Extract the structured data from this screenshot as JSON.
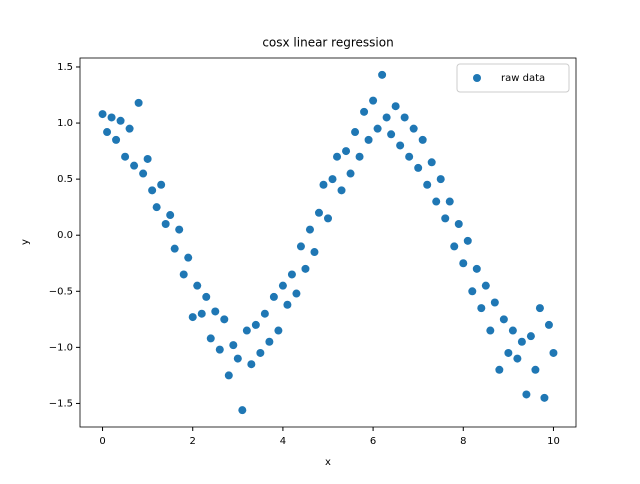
{
  "chart_data": {
    "type": "scatter",
    "title": "cosx linear regression",
    "x_label": "x",
    "y_label": "y",
    "legend": "upper right",
    "series": [
      {
        "name": "raw data",
        "color": "#1f77b4",
        "x": [
          0,
          0.1,
          0.2,
          0.3,
          0.4,
          0.5,
          0.6,
          0.7,
          0.8,
          0.9,
          1.0,
          1.1,
          1.2,
          1.3,
          1.4,
          1.5,
          1.6,
          1.7,
          1.8,
          1.9,
          2.0,
          2.1,
          2.2,
          2.3,
          2.4,
          2.5,
          2.6,
          2.7,
          2.8,
          2.9,
          3.0,
          3.1,
          3.2,
          3.3,
          3.4,
          3.5,
          3.6,
          3.7,
          3.8,
          3.9,
          4.0,
          4.1,
          4.2,
          4.3,
          4.4,
          4.5,
          4.6,
          4.7,
          4.8,
          4.9,
          5.0,
          5.1,
          5.2,
          5.3,
          5.4,
          5.5,
          5.6,
          5.7,
          5.8,
          5.9,
          6.0,
          6.1,
          6.2,
          6.3,
          6.4,
          6.5,
          6.6,
          6.7,
          6.8,
          6.9,
          7.0,
          7.1,
          7.2,
          7.3,
          7.4,
          7.5,
          7.6,
          7.7,
          7.8,
          7.9,
          8.0,
          8.1,
          8.2,
          8.3,
          8.4,
          8.5,
          8.6,
          8.7,
          8.8,
          8.9,
          9.0,
          9.1,
          9.2,
          9.3,
          9.4,
          9.5,
          9.6,
          9.7,
          9.8,
          9.9,
          10.0
        ],
        "values": [
          1.08,
          0.92,
          1.05,
          0.85,
          1.02,
          0.7,
          0.95,
          0.62,
          1.18,
          0.55,
          0.68,
          0.4,
          0.25,
          0.45,
          0.1,
          0.18,
          -0.12,
          0.05,
          -0.35,
          -0.2,
          -0.73,
          -0.45,
          -0.7,
          -0.55,
          -0.92,
          -0.68,
          -1.02,
          -0.75,
          -1.25,
          -0.98,
          -1.1,
          -1.56,
          -0.85,
          -1.15,
          -0.8,
          -1.05,
          -0.7,
          -0.95,
          -0.55,
          -0.85,
          -0.45,
          -0.62,
          -0.35,
          -0.52,
          -0.1,
          -0.3,
          0.05,
          -0.15,
          0.2,
          0.45,
          0.15,
          0.5,
          0.7,
          0.4,
          0.75,
          0.55,
          0.92,
          0.7,
          1.1,
          0.85,
          1.2,
          0.95,
          1.43,
          1.05,
          0.9,
          1.15,
          0.8,
          1.05,
          0.7,
          0.95,
          0.6,
          0.85,
          0.45,
          0.65,
          0.3,
          0.5,
          0.15,
          0.3,
          -0.1,
          0.1,
          -0.25,
          -0.05,
          -0.5,
          -0.3,
          -0.65,
          -0.45,
          -0.85,
          -0.6,
          -1.2,
          -0.75,
          -1.05,
          -0.85,
          -1.1,
          -0.95,
          -1.42,
          -0.9,
          -1.2,
          -0.65,
          -1.45,
          -0.8,
          -1.05
        ]
      }
    ],
    "xlim": [
      -0.5,
      10.5
    ],
    "ylim": [
      -1.71,
      1.58
    ],
    "xticks": [
      0,
      2,
      4,
      6,
      8,
      10
    ],
    "yticks": [
      {
        "value": -1.5,
        "label": "−1.5"
      },
      {
        "value": -1.0,
        "label": "−1.0"
      },
      {
        "value": -0.5,
        "label": "−0.5"
      },
      {
        "value": 0,
        "label": "0.0"
      },
      0.5,
      {
        "value": 1.0,
        "label": "1.0"
      },
      1.5
    ]
  }
}
